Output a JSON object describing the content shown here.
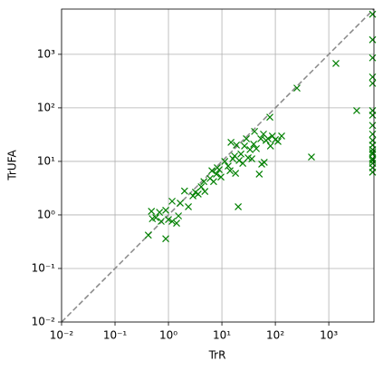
{
  "chart_data": {
    "type": "scatter",
    "xlabel": "TrR",
    "ylabel": "TrUFA",
    "color": "#008000",
    "log_x": true,
    "log_y": true,
    "grid": true,
    "diagonal": true,
    "xlim": [
      0.01,
      7000
    ],
    "ylim": [
      0.01,
      7000
    ],
    "xticks": [
      {
        "value": 0.01,
        "label": "10⁻²"
      },
      {
        "value": 0.1,
        "label": "10⁻¹"
      },
      {
        "value": 1,
        "label": "10⁰"
      },
      {
        "value": 10,
        "label": "10¹"
      },
      {
        "value": 100,
        "label": "10²"
      },
      {
        "value": 1000,
        "label": "10³"
      }
    ],
    "yticks": [
      {
        "value": 0.01,
        "label": "10⁻²"
      },
      {
        "value": 0.1,
        "label": "10⁻¹"
      },
      {
        "value": 1,
        "label": "10⁰"
      },
      {
        "value": 10,
        "label": "10¹"
      },
      {
        "value": 100,
        "label": "10²"
      },
      {
        "value": 1000,
        "label": "10³"
      }
    ],
    "x": [
      0.42,
      0.48,
      0.5,
      0.58,
      0.68,
      0.73,
      0.89,
      0.89,
      1.0,
      1.17,
      1.17,
      1.42,
      1.54,
      1.66,
      2.0,
      2.36,
      2.87,
      3.2,
      3.6,
      4.1,
      4.6,
      4.8,
      6.0,
      6.5,
      7.0,
      7.9,
      8.2,
      8.9,
      9.6,
      11.3,
      13.1,
      14.2,
      14.8,
      16.0,
      17.3,
      18.0,
      18.7,
      20.2,
      21.0,
      22.7,
      24.6,
      26.5,
      28.7,
      31.0,
      33.6,
      36.3,
      39.3,
      40.8,
      44.1,
      50,
      53.5,
      55.6,
      60,
      62,
      67,
      73,
      79,
      81,
      88,
      100,
      112,
      131,
      254,
      474,
      1360,
      3330,
      6600,
      6600,
      6600,
      6600,
      6600,
      6600,
      6600,
      6600,
      6600,
      6600,
      6600,
      6600,
      6600,
      6600,
      6600,
      6600,
      6600,
      6600,
      6600
    ],
    "values": [
      0.42,
      1.17,
      0.85,
      0.89,
      1.12,
      0.76,
      1.22,
      0.36,
      0.82,
      0.76,
      1.8,
      0.7,
      0.96,
      1.66,
      2.8,
      1.42,
      2.27,
      2.65,
      2.45,
      3.35,
      4.2,
      2.75,
      4.8,
      6.7,
      4.2,
      5.8,
      7.6,
      7.0,
      5.1,
      10.0,
      8.2,
      6.7,
      22.7,
      11.2,
      12.6,
      6.0,
      20.2,
      1.42,
      10.4,
      13.7,
      9.2,
      19.4,
      26.5,
      11.7,
      16.6,
      11.2,
      21.0,
      36.3,
      17.3,
      5.8,
      26.5,
      8.9,
      32.3,
      9.6,
      24.6,
      26.5,
      67,
      19.4,
      29.8,
      25.5,
      23.6,
      29.8,
      234,
      12.1,
      676,
      89,
      5600,
      1870,
      860,
      377,
      287,
      89,
      73,
      47,
      32.3,
      24.6,
      20.2,
      16.6,
      13.7,
      11.2,
      9.2,
      7.6,
      6.3,
      10.4,
      14.8
    ]
  }
}
